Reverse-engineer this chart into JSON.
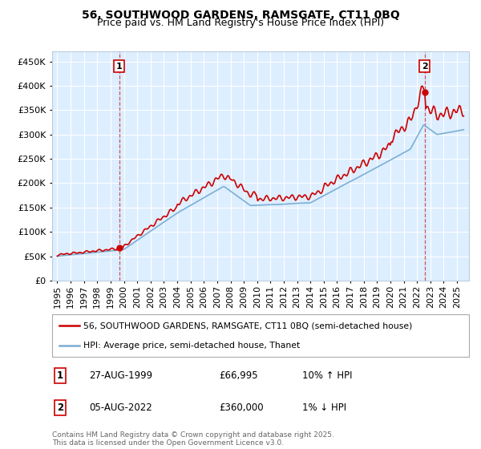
{
  "title_line1": "56, SOUTHWOOD GARDENS, RAMSGATE, CT11 0BQ",
  "title_line2": "Price paid vs. HM Land Registry's House Price Index (HPI)",
  "legend_label1": "56, SOUTHWOOD GARDENS, RAMSGATE, CT11 0BQ (semi-detached house)",
  "legend_label2": "HPI: Average price, semi-detached house, Thanet",
  "row1": [
    "1",
    "27-AUG-1999",
    "£66,995",
    "10% ↑ HPI"
  ],
  "row2": [
    "2",
    "05-AUG-2022",
    "£360,000",
    "1% ↓ HPI"
  ],
  "footer": "Contains HM Land Registry data © Crown copyright and database right 2025.\nThis data is licensed under the Open Government Licence v3.0.",
  "red_color": "#cc0000",
  "blue_color": "#7bafd4",
  "bg_color": "#ddeeff",
  "grid_color": "#ffffff",
  "ylim": [
    0,
    470000
  ],
  "yticks": [
    0,
    50000,
    100000,
    150000,
    200000,
    250000,
    300000,
    350000,
    400000,
    450000
  ],
  "marker1_year": 1999.65,
  "marker1_value": 66995,
  "marker2_year": 2022.58,
  "marker2_value": 360000,
  "title1_fontsize": 10,
  "title2_fontsize": 9
}
